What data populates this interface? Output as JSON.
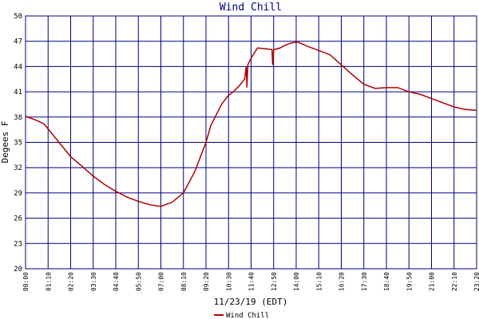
{
  "chart_data": {
    "type": "line",
    "title": "Wind Chill",
    "x_label": "11/23/19 (EDT)",
    "y_label": "Degees F",
    "series": [
      {
        "name": "Wind Chill",
        "color": "#b00000",
        "x": [
          0,
          35,
          57,
          70,
          104,
          140,
          174,
          210,
          245,
          280,
          315,
          350,
          385,
          420,
          455,
          490,
          525,
          560,
          575,
          595,
          610,
          628,
          645,
          663,
          680,
          685,
          687,
          690,
          700,
          720,
          747,
          765,
          767,
          770,
          790,
          805,
          825,
          845,
          875,
          910,
          945,
          980,
          1015,
          1050,
          1085,
          1120,
          1155,
          1190,
          1225,
          1260,
          1295,
          1330,
          1365,
          1400
        ],
        "values": [
          38.1,
          37.6,
          37.2,
          36.6,
          35.0,
          33.3,
          32.2,
          31.0,
          30.0,
          29.2,
          28.5,
          28.0,
          27.6,
          27.4,
          27.9,
          29.0,
          31.5,
          35.0,
          37.0,
          38.5,
          39.6,
          40.5,
          41.0,
          41.7,
          42.5,
          44.0,
          41.5,
          44.2,
          45.0,
          46.2,
          46.1,
          46.0,
          44.2,
          46.0,
          46.2,
          46.5,
          46.8,
          46.9,
          46.4,
          45.9,
          45.4,
          44.2,
          43.0,
          41.9,
          41.4,
          41.5,
          41.5,
          41.0,
          40.7,
          40.2,
          39.7,
          39.2,
          38.9,
          38.8
        ]
      }
    ],
    "xlim": [
      0,
      1400
    ],
    "xticks": [
      {
        "value": 0,
        "label": "00:00"
      },
      {
        "value": 70,
        "label": "01:10"
      },
      {
        "value": 140,
        "label": "02:20"
      },
      {
        "value": 210,
        "label": "03:30"
      },
      {
        "value": 280,
        "label": "04:40"
      },
      {
        "value": 350,
        "label": "05:50"
      },
      {
        "value": 420,
        "label": "07:00"
      },
      {
        "value": 490,
        "label": "08:10"
      },
      {
        "value": 560,
        "label": "09:20"
      },
      {
        "value": 630,
        "label": "10:30"
      },
      {
        "value": 700,
        "label": "11:40"
      },
      {
        "value": 770,
        "label": "12:50"
      },
      {
        "value": 840,
        "label": "14:00"
      },
      {
        "value": 910,
        "label": "15:10"
      },
      {
        "value": 980,
        "label": "16:20"
      },
      {
        "value": 1050,
        "label": "17:30"
      },
      {
        "value": 1120,
        "label": "18:40"
      },
      {
        "value": 1190,
        "label": "19:50"
      },
      {
        "value": 1260,
        "label": "21:00"
      },
      {
        "value": 1330,
        "label": "22:10"
      },
      {
        "value": 1400,
        "label": "23:20"
      }
    ],
    "ylim": [
      20,
      50
    ],
    "yticks": [
      20,
      23,
      26,
      29,
      32,
      35,
      38,
      41,
      44,
      47,
      50
    ],
    "grid": true
  }
}
